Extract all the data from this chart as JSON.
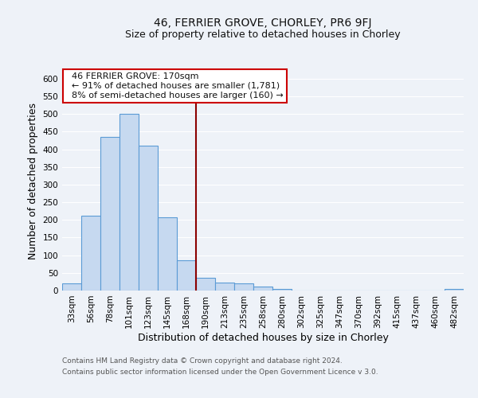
{
  "title": "46, FERRIER GROVE, CHORLEY, PR6 9FJ",
  "subtitle": "Size of property relative to detached houses in Chorley",
  "xlabel": "Distribution of detached houses by size in Chorley",
  "ylabel": "Number of detached properties",
  "footer_line1": "Contains HM Land Registry data © Crown copyright and database right 2024.",
  "footer_line2": "Contains public sector information licensed under the Open Government Licence v 3.0.",
  "bin_labels": [
    "33sqm",
    "56sqm",
    "78sqm",
    "101sqm",
    "123sqm",
    "145sqm",
    "168sqm",
    "190sqm",
    "213sqm",
    "235sqm",
    "258sqm",
    "280sqm",
    "302sqm",
    "325sqm",
    "347sqm",
    "370sqm",
    "392sqm",
    "415sqm",
    "437sqm",
    "460sqm",
    "482sqm"
  ],
  "bar_values": [
    20,
    212,
    435,
    500,
    410,
    208,
    85,
    37,
    23,
    20,
    12,
    5,
    0,
    0,
    0,
    0,
    0,
    0,
    0,
    0,
    5
  ],
  "bar_color": "#c6d9f0",
  "bar_edge_color": "#5b9bd5",
  "marker_bin_index": 6,
  "marker_color": "#8b0000",
  "ylim": [
    0,
    620
  ],
  "yticks": [
    0,
    50,
    100,
    150,
    200,
    250,
    300,
    350,
    400,
    450,
    500,
    550,
    600
  ],
  "annotation_title": "46 FERRIER GROVE: 170sqm",
  "annotation_line1": "← 91% of detached houses are smaller (1,781)",
  "annotation_line2": "8% of semi-detached houses are larger (160) →",
  "annotation_box_color": "#ffffff",
  "annotation_box_edge_color": "#cc0000",
  "bg_color": "#eef2f8",
  "grid_color": "#ffffff",
  "title_fontsize": 10,
  "subtitle_fontsize": 9,
  "axis_label_fontsize": 9,
  "tick_fontsize": 7.5,
  "annotation_fontsize": 8,
  "footer_fontsize": 6.5
}
